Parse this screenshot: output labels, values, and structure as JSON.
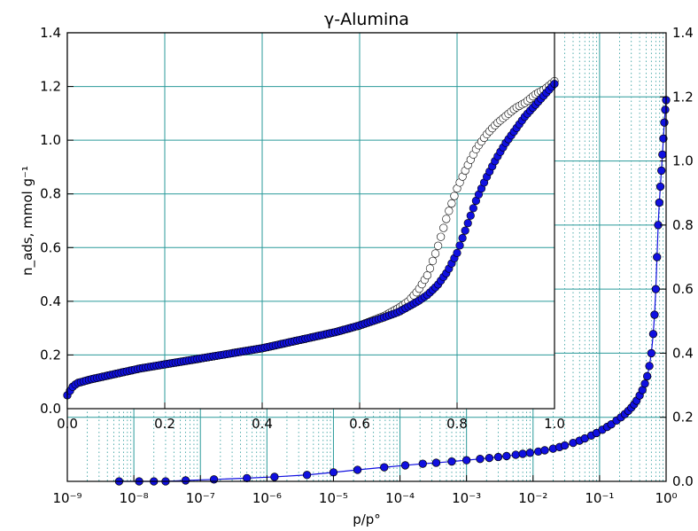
{
  "chart_data": {
    "title": "γ-Alumina",
    "xlabel": "p/p°",
    "ylabel": "n_ads, mmol g⁻¹",
    "colors": {
      "grid": "#2a9a9a",
      "adsorption": "#1010e0",
      "desorption": "#ffffff",
      "marker_edge": "#000000"
    },
    "main": {
      "type": "scatter",
      "x_scale": "log",
      "xlim": [
        "1e-9",
        "1"
      ],
      "ylim": [
        0,
        1.4
      ],
      "x_tick_labels": [
        "10⁻⁹",
        "10⁻⁸",
        "10⁻⁷",
        "10⁻⁶",
        "10⁻⁵",
        "10⁻⁴",
        "10⁻³",
        "10⁻²",
        "10⁻¹",
        "10⁰"
      ],
      "y_tick_labels": [
        "0.0",
        "0.2",
        "0.4",
        "0.6",
        "0.8",
        "1.0",
        "1.2",
        "1.4"
      ],
      "y_axis_side": "right",
      "grid": true,
      "series": [
        {
          "marker": "filled circle",
          "line": true,
          "x": [
            6e-09,
            1.2e-08,
            2e-08,
            3e-08,
            6e-08,
            1.6e-07,
            5e-07,
            1.3e-06,
            4e-06,
            1e-05,
            2.3e-05,
            5.8e-05,
            0.00012,
            0.00022,
            0.00035,
            0.0006,
            0.001,
            0.0016,
            0.0022,
            0.003,
            0.004,
            0.0055,
            0.007,
            0.009,
            0.012,
            0.015,
            0.02,
            0.025,
            0.03,
            0.04,
            0.05,
            0.06,
            0.075,
            0.09,
            0.11,
            0.13,
            0.15,
            0.18,
            0.21,
            0.24,
            0.27,
            0.3,
            0.33,
            0.36,
            0.4,
            0.44,
            0.48,
            0.52,
            0.56,
            0.6,
            0.64,
            0.67,
            0.7,
            0.73,
            0.76,
            0.79,
            0.82,
            0.85,
            0.88,
            0.91,
            0.94,
            0.97,
            1.0
          ],
          "y": [
            0.0,
            0.0,
            0.0,
            0.0,
            0.003,
            0.006,
            0.01,
            0.014,
            0.02,
            0.028,
            0.036,
            0.044,
            0.05,
            0.055,
            0.058,
            0.062,
            0.066,
            0.07,
            0.073,
            0.076,
            0.079,
            0.083,
            0.086,
            0.089,
            0.093,
            0.097,
            0.102,
            0.107,
            0.112,
            0.12,
            0.127,
            0.134,
            0.143,
            0.151,
            0.161,
            0.17,
            0.178,
            0.19,
            0.2,
            0.21,
            0.22,
            0.23,
            0.24,
            0.252,
            0.268,
            0.285,
            0.305,
            0.328,
            0.36,
            0.4,
            0.46,
            0.52,
            0.6,
            0.7,
            0.8,
            0.87,
            0.92,
            0.97,
            1.02,
            1.07,
            1.12,
            1.16,
            1.19
          ]
        }
      ]
    },
    "inset": {
      "type": "scatter",
      "x_scale": "linear",
      "xlim": [
        0.0,
        1.0
      ],
      "ylim": [
        0.0,
        1.4
      ],
      "x_tick_labels": [
        "0.0",
        "0.2",
        "0.4",
        "0.6",
        "0.8",
        "1.0"
      ],
      "y_tick_labels": [
        "0.0",
        "0.2",
        "0.4",
        "0.6",
        "0.8",
        "1.0",
        "1.2",
        "1.4"
      ],
      "y_axis_side": "left",
      "grid": true,
      "series": [
        {
          "marker": "open circle",
          "line": false,
          "x": [
            0.0,
            0.01,
            0.02,
            0.05,
            0.1,
            0.15,
            0.2,
            0.25,
            0.3,
            0.35,
            0.4,
            0.45,
            0.5,
            0.55,
            0.6,
            0.65,
            0.68,
            0.7,
            0.72,
            0.74,
            0.75,
            0.76,
            0.77,
            0.78,
            0.79,
            0.8,
            0.82,
            0.84,
            0.86,
            0.88,
            0.9,
            0.92,
            0.94,
            0.96,
            0.98,
            1.0
          ],
          "y": [
            0.05,
            0.08,
            0.095,
            0.11,
            0.13,
            0.15,
            0.165,
            0.18,
            0.195,
            0.21,
            0.225,
            0.245,
            0.265,
            0.285,
            0.31,
            0.345,
            0.375,
            0.4,
            0.44,
            0.5,
            0.55,
            0.6,
            0.66,
            0.72,
            0.77,
            0.82,
            0.9,
            0.97,
            1.02,
            1.06,
            1.09,
            1.12,
            1.14,
            1.17,
            1.19,
            1.22
          ]
        },
        {
          "marker": "filled circle",
          "line": false,
          "x": [
            0.0,
            0.01,
            0.02,
            0.05,
            0.1,
            0.15,
            0.2,
            0.25,
            0.3,
            0.35,
            0.4,
            0.45,
            0.5,
            0.55,
            0.6,
            0.65,
            0.68,
            0.7,
            0.72,
            0.74,
            0.76,
            0.78,
            0.8,
            0.82,
            0.84,
            0.86,
            0.88,
            0.9,
            0.92,
            0.94,
            0.96,
            0.98,
            1.0
          ],
          "y": [
            0.05,
            0.08,
            0.095,
            0.11,
            0.13,
            0.15,
            0.165,
            0.18,
            0.195,
            0.21,
            0.225,
            0.245,
            0.265,
            0.285,
            0.31,
            0.34,
            0.36,
            0.38,
            0.4,
            0.425,
            0.46,
            0.51,
            0.58,
            0.68,
            0.78,
            0.86,
            0.93,
            0.99,
            1.04,
            1.09,
            1.13,
            1.17,
            1.21
          ]
        }
      ]
    }
  }
}
